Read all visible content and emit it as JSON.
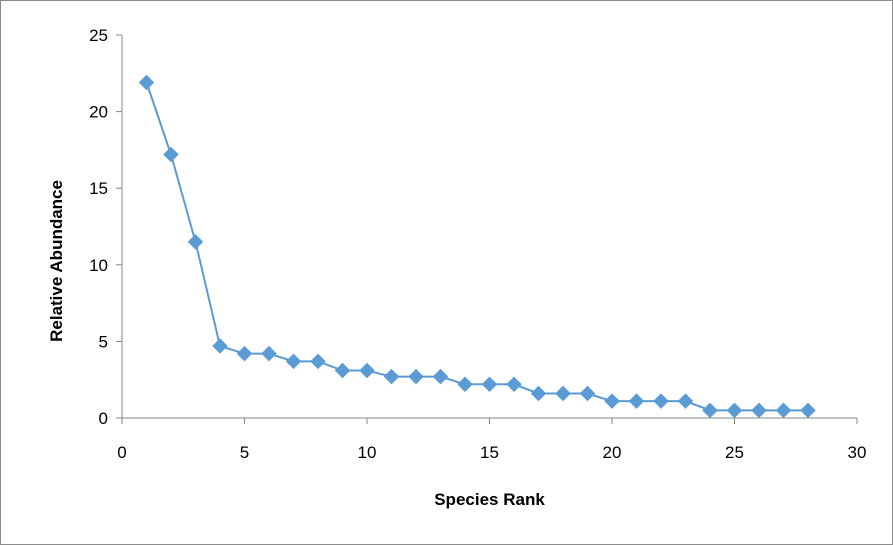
{
  "chart_data": {
    "type": "line",
    "xlabel": "Species Rank",
    "ylabel": "Relative Abundance",
    "xlim": [
      0,
      30
    ],
    "ylim": [
      0,
      25
    ],
    "xticks": [
      0,
      5,
      10,
      15,
      20,
      25,
      30
    ],
    "yticks": [
      0,
      5,
      10,
      15,
      20,
      25
    ],
    "grid": false,
    "legend": "none",
    "series": [
      {
        "color": "#5b9bd5",
        "marker": "diamond",
        "x": [
          1,
          2,
          3,
          4,
          5,
          6,
          7,
          8,
          9,
          10,
          11,
          12,
          13,
          14,
          15,
          16,
          17,
          18,
          19,
          20,
          21,
          22,
          23,
          24,
          25,
          26,
          27,
          28
        ],
        "y": [
          21.9,
          17.2,
          11.5,
          4.7,
          4.2,
          4.2,
          3.7,
          3.7,
          3.1,
          3.1,
          2.7,
          2.7,
          2.7,
          2.2,
          2.2,
          2.2,
          1.6,
          1.6,
          1.6,
          1.1,
          1.1,
          1.1,
          1.1,
          0.5,
          0.5,
          0.5,
          0.5,
          0.5
        ]
      }
    ]
  }
}
